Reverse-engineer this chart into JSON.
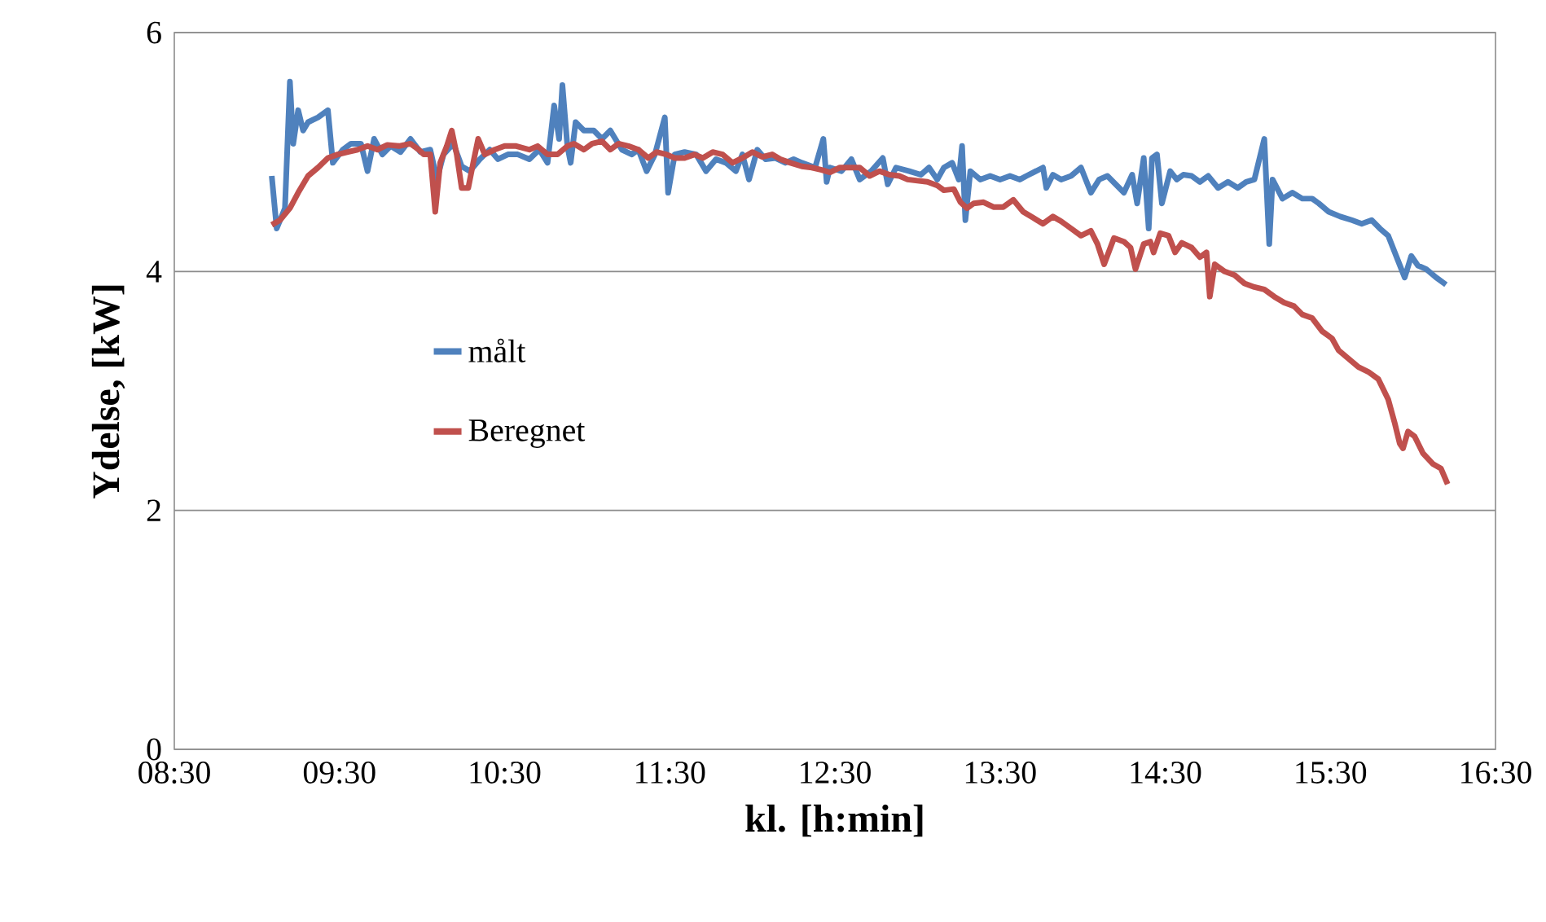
{
  "chart_data": {
    "type": "line",
    "xlabel": "kl. [h:min]",
    "ylabel": "Ydelse, [kW]",
    "xlim": [
      8.5,
      16.5
    ],
    "ylim": [
      0,
      6
    ],
    "xticks": [
      {
        "value": 8.5,
        "label": "08:30"
      },
      {
        "value": 9.5,
        "label": "09:30"
      },
      {
        "value": 10.5,
        "label": "10:30"
      },
      {
        "value": 11.5,
        "label": "11:30"
      },
      {
        "value": 12.5,
        "label": "12:30"
      },
      {
        "value": 13.5,
        "label": "13:30"
      },
      {
        "value": 14.5,
        "label": "14:30"
      },
      {
        "value": 15.5,
        "label": "15:30"
      },
      {
        "value": 16.5,
        "label": "16:30"
      }
    ],
    "yticks": [
      0,
      2,
      4,
      6
    ],
    "grid": "y",
    "legend": "left",
    "marker": "none",
    "line_style": "solid",
    "series": [
      {
        "name": "målt",
        "color": "#4f81bd",
        "x": [
          9.09,
          9.12,
          9.17,
          9.2,
          9.22,
          9.25,
          9.28,
          9.31,
          9.37,
          9.43,
          9.46,
          9.52,
          9.57,
          9.63,
          9.67,
          9.71,
          9.76,
          9.81,
          9.87,
          9.93,
          9.99,
          10.05,
          10.09,
          10.13,
          10.19,
          10.24,
          10.29,
          10.35,
          10.41,
          10.46,
          10.52,
          10.58,
          10.65,
          10.71,
          10.76,
          10.8,
          10.83,
          10.85,
          10.88,
          10.9,
          10.93,
          10.98,
          11.04,
          11.09,
          11.14,
          11.21,
          11.27,
          11.31,
          11.36,
          11.41,
          11.47,
          11.49,
          11.53,
          11.59,
          11.66,
          11.72,
          11.78,
          11.84,
          11.9,
          11.94,
          11.98,
          12.03,
          12.08,
          12.14,
          12.2,
          12.25,
          12.3,
          12.38,
          12.43,
          12.45,
          12.47,
          12.54,
          12.6,
          12.65,
          12.72,
          12.79,
          12.82,
          12.87,
          12.95,
          13.02,
          13.07,
          13.12,
          13.16,
          13.21,
          13.25,
          13.27,
          13.29,
          13.32,
          13.38,
          13.44,
          13.5,
          13.56,
          13.62,
          13.66,
          13.76,
          13.78,
          13.82,
          13.87,
          13.93,
          13.99,
          14.05,
          14.1,
          14.15,
          14.2,
          14.25,
          14.3,
          14.33,
          14.37,
          14.4,
          14.42,
          14.45,
          14.48,
          14.53,
          14.57,
          14.61,
          14.66,
          14.71,
          14.76,
          14.82,
          14.88,
          14.94,
          14.99,
          15.04,
          15.1,
          15.13,
          15.15,
          15.21,
          15.27,
          15.33,
          15.39,
          15.43,
          15.49,
          15.56,
          15.63,
          15.69,
          15.75,
          15.8,
          15.85,
          15.91,
          15.95,
          15.99,
          16.03,
          16.08,
          16.14,
          16.2
        ],
        "values": [
          4.8,
          4.36,
          4.53,
          5.59,
          5.07,
          5.35,
          5.18,
          5.25,
          5.29,
          5.35,
          4.91,
          5.02,
          5.07,
          5.07,
          4.84,
          5.11,
          4.98,
          5.05,
          5.0,
          5.11,
          5.0,
          5.02,
          4.77,
          4.98,
          5.07,
          4.88,
          4.84,
          4.94,
          5.02,
          4.94,
          4.98,
          4.98,
          4.94,
          5.02,
          4.91,
          5.39,
          5.11,
          5.56,
          5.05,
          4.91,
          5.25,
          5.18,
          5.18,
          5.11,
          5.18,
          5.02,
          4.98,
          5.02,
          4.84,
          4.98,
          5.29,
          4.66,
          4.98,
          5.0,
          4.98,
          4.84,
          4.94,
          4.91,
          4.84,
          4.98,
          4.77,
          5.02,
          4.94,
          4.95,
          4.91,
          4.94,
          4.91,
          4.87,
          5.11,
          4.75,
          4.87,
          4.84,
          4.94,
          4.77,
          4.84,
          4.95,
          4.73,
          4.87,
          4.84,
          4.81,
          4.87,
          4.77,
          4.87,
          4.91,
          4.77,
          5.05,
          4.43,
          4.84,
          4.77,
          4.8,
          4.77,
          4.8,
          4.77,
          4.8,
          4.87,
          4.7,
          4.81,
          4.77,
          4.8,
          4.87,
          4.66,
          4.77,
          4.8,
          4.73,
          4.66,
          4.81,
          4.57,
          4.95,
          4.36,
          4.95,
          4.98,
          4.57,
          4.84,
          4.77,
          4.81,
          4.8,
          4.75,
          4.8,
          4.7,
          4.75,
          4.7,
          4.75,
          4.77,
          5.11,
          4.23,
          4.77,
          4.61,
          4.66,
          4.61,
          4.61,
          4.57,
          4.5,
          4.46,
          4.43,
          4.4,
          4.43,
          4.36,
          4.3,
          4.09,
          3.95,
          4.13,
          4.05,
          4.02,
          3.95,
          3.89
        ]
      },
      {
        "name": "Beregnet",
        "color": "#c0504d",
        "x": [
          9.09,
          9.14,
          9.2,
          9.25,
          9.31,
          9.37,
          9.43,
          9.49,
          9.55,
          9.61,
          9.67,
          9.73,
          9.79,
          9.86,
          9.93,
          9.98,
          10.01,
          10.05,
          10.08,
          10.11,
          10.15,
          10.18,
          10.21,
          10.24,
          10.28,
          10.31,
          10.34,
          10.38,
          10.44,
          10.5,
          10.57,
          10.65,
          10.7,
          10.76,
          10.82,
          10.88,
          10.92,
          10.98,
          11.03,
          11.09,
          11.14,
          11.19,
          11.25,
          11.31,
          11.37,
          11.42,
          11.48,
          11.53,
          11.59,
          11.65,
          11.7,
          11.76,
          11.82,
          11.88,
          11.94,
          12.0,
          12.06,
          12.12,
          12.17,
          12.23,
          12.3,
          12.36,
          12.42,
          12.47,
          12.53,
          12.59,
          12.65,
          12.71,
          12.77,
          12.83,
          12.89,
          12.94,
          13.0,
          13.06,
          13.12,
          13.16,
          13.22,
          13.26,
          13.3,
          13.34,
          13.4,
          13.46,
          13.52,
          13.58,
          13.64,
          13.7,
          13.76,
          13.82,
          13.87,
          13.93,
          13.99,
          14.05,
          14.09,
          14.13,
          14.19,
          14.25,
          14.29,
          14.32,
          14.37,
          14.41,
          14.43,
          14.47,
          14.52,
          14.56,
          14.6,
          14.66,
          14.71,
          14.75,
          14.77,
          14.8,
          14.86,
          14.92,
          14.98,
          15.04,
          15.1,
          15.16,
          15.22,
          15.28,
          15.33,
          15.39,
          15.45,
          15.51,
          15.55,
          15.61,
          15.67,
          15.73,
          15.79,
          15.85,
          15.89,
          15.92,
          15.94,
          15.97,
          16.01,
          16.06,
          16.12,
          16.17,
          16.21
        ],
        "values": [
          4.39,
          4.43,
          4.53,
          4.66,
          4.8,
          4.87,
          4.95,
          4.98,
          5.0,
          5.02,
          5.05,
          5.02,
          5.06,
          5.05,
          5.07,
          5.02,
          4.98,
          4.98,
          4.5,
          4.91,
          5.05,
          5.18,
          4.98,
          4.7,
          4.7,
          4.91,
          5.11,
          4.98,
          5.02,
          5.05,
          5.05,
          5.02,
          5.05,
          4.98,
          4.98,
          5.05,
          5.07,
          5.02,
          5.07,
          5.09,
          5.02,
          5.07,
          5.05,
          5.02,
          4.95,
          5.0,
          4.98,
          4.95,
          4.95,
          4.98,
          4.95,
          5.0,
          4.98,
          4.91,
          4.95,
          5.0,
          4.96,
          4.98,
          4.94,
          4.91,
          4.88,
          4.87,
          4.85,
          4.83,
          4.87,
          4.87,
          4.87,
          4.8,
          4.84,
          4.81,
          4.8,
          4.77,
          4.76,
          4.75,
          4.72,
          4.68,
          4.69,
          4.58,
          4.53,
          4.57,
          4.58,
          4.54,
          4.54,
          4.6,
          4.5,
          4.45,
          4.4,
          4.46,
          4.42,
          4.36,
          4.3,
          4.34,
          4.23,
          4.06,
          4.28,
          4.25,
          4.2,
          4.02,
          4.23,
          4.25,
          4.16,
          4.32,
          4.3,
          4.16,
          4.24,
          4.2,
          4.12,
          4.16,
          3.79,
          4.06,
          4.0,
          3.97,
          3.9,
          3.87,
          3.85,
          3.79,
          3.74,
          3.71,
          3.64,
          3.61,
          3.5,
          3.44,
          3.34,
          3.27,
          3.2,
          3.16,
          3.1,
          2.93,
          2.73,
          2.56,
          2.52,
          2.66,
          2.62,
          2.48,
          2.39,
          2.35,
          2.22
        ]
      }
    ]
  }
}
